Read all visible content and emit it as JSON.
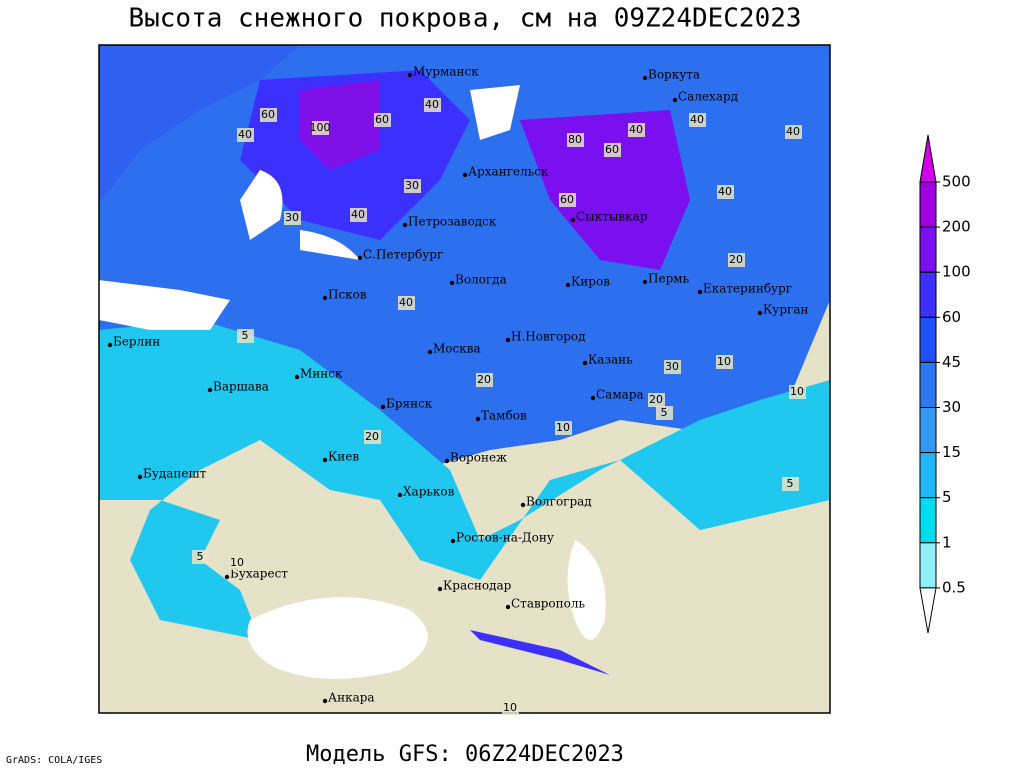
{
  "header": {
    "title": "Высота снежного покрова, см на 09Z24DEC2023"
  },
  "footer": {
    "model": "Модель GFS: 06Z24DEC2023",
    "credit": "GrADS: COLA/IGES"
  },
  "legend": {
    "levels": [
      500,
      200,
      100,
      60,
      45,
      30,
      15,
      5,
      1,
      0.5
    ],
    "colors": [
      "#d000e8",
      "#a000e0",
      "#7a10f0",
      "#3c30ff",
      "#1e50f8",
      "#2c78f0",
      "#3298f0",
      "#20b8f8",
      "#00dcf0",
      "#90f0f8",
      "#ffffff"
    ]
  },
  "map": {
    "cities": [
      "Мурманск",
      "Воркута",
      "Салехард",
      "Архангельск",
      "Сыктывкар",
      "Петрозаводск",
      "С.Петербург",
      "Вологда",
      "Киров",
      "Пермь",
      "Екатеринбург",
      "Курган",
      "Псков",
      "Берлин",
      "Н.Новгород",
      "Москва",
      "Казань",
      "Минск",
      "Варшава",
      "Самара",
      "Брянск",
      "Тамбов",
      "Киев",
      "Воронеж",
      "Будапешт",
      "Харьков",
      "Волгоград",
      "Ростов-на-Дону",
      "Бухарест",
      "Краснодар",
      "Ставрополь",
      "Анкара"
    ],
    "contour_labels": [
      "60",
      "100",
      "60",
      "40",
      "40",
      "30",
      "40",
      "80",
      "60",
      "40",
      "60",
      "40",
      "40",
      "30",
      "40",
      "20",
      "20",
      "40",
      "20",
      "10",
      "10",
      "5",
      "5",
      "5",
      "10",
      "30",
      "20",
      "5",
      "10",
      "10"
    ]
  }
}
